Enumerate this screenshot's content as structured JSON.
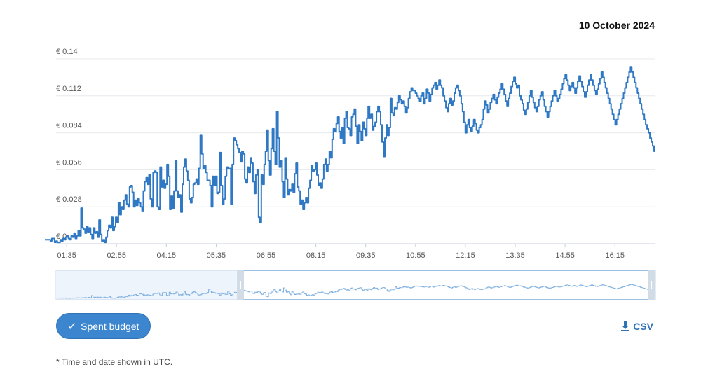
{
  "header": {
    "date": "10 October 2024"
  },
  "buttons": {
    "spent_budget": "Spent budget",
    "csv": "CSV"
  },
  "icons": {
    "check": "check-icon",
    "download": "download-icon"
  },
  "footnote": "* Time and date shown in UTC.",
  "colors": {
    "line": "#2f78c4",
    "accent": "#3b86cf",
    "navigator_fill": "#eef4fb"
  },
  "chart_data": {
    "type": "line",
    "step": true,
    "currency": "€",
    "y_ticks": [
      "€ 0",
      "€ 0.028",
      "€ 0.056",
      "€ 0.084",
      "€ 0.112",
      "€ 0.14"
    ],
    "ylim": [
      0,
      0.14
    ],
    "x_ticks": [
      "01:35",
      "02:55",
      "04:15",
      "05:35",
      "06:55",
      "08:15",
      "09:35",
      "10:55",
      "12:15",
      "13:35",
      "14:55",
      "16:15"
    ],
    "x_range": [
      "01:00",
      "17:20"
    ],
    "grid": true,
    "series": [
      {
        "values": [
          0.003,
          0.003,
          0.003,
          0.003,
          0.002,
          0.004,
          0.004,
          0.001,
          0.002,
          0.001,
          0.001,
          0.003,
          0.002,
          0.004,
          0.003,
          0.005,
          0.006,
          0.004,
          0.003,
          0.006,
          0.005,
          0.008,
          0.004,
          0.006,
          0.01,
          0.006,
          0.027,
          0.012,
          0.011,
          0.008,
          0.013,
          0.009,
          0.012,
          0.007,
          0.004,
          0.012,
          0.008,
          0.009,
          0.005,
          0.018,
          0.007,
          0.002,
          0.003,
          0.001,
          0.005,
          0.01,
          0.014,
          0.012,
          0.02,
          0.01,
          0.013,
          0.02,
          0.016,
          0.031,
          0.022,
          0.028,
          0.026,
          0.033,
          0.037,
          0.03,
          0.028,
          0.043,
          0.044,
          0.039,
          0.028,
          0.033,
          0.029,
          0.034,
          0.031,
          0.028,
          0.025,
          0.04,
          0.047,
          0.05,
          0.045,
          0.052,
          0.034,
          0.028,
          0.054,
          0.055,
          0.054,
          0.028,
          0.026,
          0.058,
          0.043,
          0.048,
          0.042,
          0.045,
          0.06,
          0.051,
          0.026,
          0.036,
          0.027,
          0.04,
          0.063,
          0.04,
          0.035,
          0.037,
          0.024,
          0.045,
          0.058,
          0.064,
          0.055,
          0.048,
          0.034,
          0.031,
          0.035,
          0.045,
          0.046,
          0.049,
          0.045,
          0.057,
          0.082,
          0.068,
          0.057,
          0.059,
          0.054,
          0.048,
          0.048,
          0.044,
          0.028,
          0.051,
          0.044,
          0.051,
          0.038,
          0.039,
          0.069,
          0.044,
          0.03,
          0.034,
          0.051,
          0.058,
          0.057,
          0.057,
          0.03,
          0.06,
          0.08,
          0.078,
          0.075,
          0.072,
          0.069,
          0.062,
          0.07,
          0.068,
          0.049,
          0.046,
          0.058,
          0.054,
          0.065,
          0.061,
          0.047,
          0.038,
          0.052,
          0.056,
          0.02,
          0.016,
          0.052,
          0.045,
          0.06,
          0.07,
          0.086,
          0.063,
          0.052,
          0.072,
          0.087,
          0.07,
          0.06,
          0.1,
          0.08,
          0.058,
          0.063,
          0.047,
          0.035,
          0.065,
          0.049,
          0.037,
          0.041,
          0.04,
          0.045,
          0.039,
          0.053,
          0.061,
          0.043,
          0.04,
          0.03,
          0.033,
          0.026,
          0.031,
          0.035,
          0.031,
          0.042,
          0.048,
          0.059,
          0.055,
          0.056,
          0.061,
          0.052,
          0.044,
          0.046,
          0.042,
          0.049,
          0.06,
          0.064,
          0.055,
          0.06,
          0.07,
          0.065,
          0.079,
          0.087,
          0.085,
          0.091,
          0.096,
          0.085,
          0.08,
          0.088,
          0.076,
          0.095,
          0.1,
          0.088,
          0.087,
          0.082,
          0.096,
          0.098,
          0.102,
          0.089,
          0.076,
          0.09,
          0.085,
          0.078,
          0.092,
          0.087,
          0.082,
          0.095,
          0.104,
          0.095,
          0.098,
          0.086,
          0.089,
          0.092,
          0.1,
          0.104,
          0.1,
          0.09,
          0.077,
          0.066,
          0.08,
          0.09,
          0.082,
          0.088,
          0.11,
          0.099,
          0.097,
          0.103,
          0.102,
          0.107,
          0.112,
          0.109,
          0.106,
          0.108,
          0.104,
          0.099,
          0.103,
          0.11,
          0.115,
          0.118,
          0.116,
          0.116,
          0.114,
          0.112,
          0.11,
          0.108,
          0.112,
          0.114,
          0.106,
          0.11,
          0.117,
          0.114,
          0.108,
          0.113,
          0.118,
          0.12,
          0.122,
          0.117,
          0.12,
          0.124,
          0.12,
          0.118,
          0.112,
          0.108,
          0.103,
          0.1,
          0.106,
          0.11,
          0.105,
          0.108,
          0.114,
          0.118,
          0.12,
          0.116,
          0.112,
          0.106,
          0.1,
          0.092,
          0.084,
          0.09,
          0.094,
          0.088,
          0.085,
          0.089,
          0.094,
          0.091,
          0.086,
          0.084,
          0.088,
          0.09,
          0.094,
          0.102,
          0.108,
          0.105,
          0.099,
          0.102,
          0.107,
          0.11,
          0.113,
          0.109,
          0.106,
          0.111,
          0.114,
          0.117,
          0.121,
          0.117,
          0.113,
          0.108,
          0.104,
          0.11,
          0.114,
          0.119,
          0.123,
          0.126,
          0.121,
          0.118,
          0.12,
          0.112,
          0.109,
          0.106,
          0.101,
          0.098,
          0.102,
          0.107,
          0.112,
          0.116,
          0.111,
          0.107,
          0.103,
          0.1,
          0.104,
          0.109,
          0.112,
          0.115,
          0.109,
          0.104,
          0.1,
          0.096,
          0.1,
          0.104,
          0.108,
          0.112,
          0.116,
          0.112,
          0.108,
          0.11,
          0.113,
          0.117,
          0.121,
          0.125,
          0.128,
          0.124,
          0.12,
          0.116,
          0.119,
          0.122,
          0.118,
          0.114,
          0.118,
          0.123,
          0.127,
          0.123,
          0.119,
          0.115,
          0.111,
          0.115,
          0.12,
          0.124,
          0.128,
          0.124,
          0.12,
          0.116,
          0.113,
          0.117,
          0.121,
          0.125,
          0.13,
          0.126,
          0.122,
          0.118,
          0.114,
          0.11,
          0.106,
          0.102,
          0.098,
          0.094,
          0.09,
          0.094,
          0.098,
          0.102,
          0.106,
          0.11,
          0.114,
          0.118,
          0.122,
          0.126,
          0.13,
          0.134,
          0.13,
          0.126,
          0.122,
          0.118,
          0.114,
          0.11,
          0.106,
          0.102,
          0.098,
          0.094,
          0.09,
          0.087,
          0.084,
          0.08,
          0.077,
          0.074,
          0.07
        ]
      }
    ]
  }
}
